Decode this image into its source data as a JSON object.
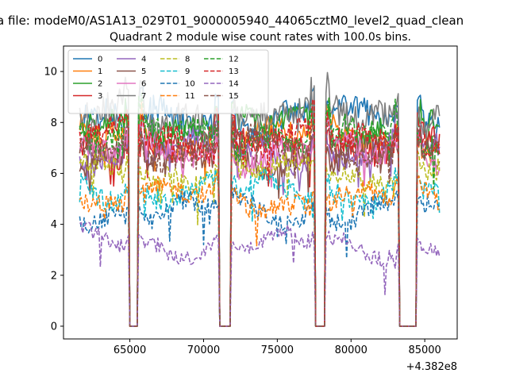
{
  "figure": {
    "suptitle": "a file: modeM0/AS1A13_029T01_9000005940_44065cztM0_level2_quad_clean",
    "title": "Quadrant 2 module wise count rates with 100.0s bins."
  },
  "chart_data": {
    "type": "line",
    "title": "Quadrant 2 module wise count rates with 100.0s bins.",
    "xlabel": "",
    "ylabel": "",
    "x_offset_label": "+4.382e8",
    "xlim": [
      60500,
      87200
    ],
    "ylim": [
      -0.5,
      11.0
    ],
    "x_ticks": [
      65000,
      70000,
      75000,
      80000,
      85000
    ],
    "x_tick_labels": [
      "65000",
      "70000",
      "75000",
      "80000",
      "85000"
    ],
    "y_ticks": [
      0,
      2,
      4,
      6,
      8,
      10
    ],
    "y_tick_labels": [
      "0",
      "2",
      "4",
      "6",
      "8",
      "10"
    ],
    "x_start": 61600,
    "x_end": 86000,
    "bin": 100,
    "gaps": [
      [
        65000,
        65550
      ],
      [
        71100,
        71800
      ],
      [
        77600,
        78200
      ],
      [
        83300,
        84400
      ]
    ],
    "grid": false,
    "legend_position": "top-left",
    "legend_columns": 4,
    "series": [
      {
        "name": "0",
        "mean": 8.1,
        "color": "#1f77b4",
        "dash": "solid"
      },
      {
        "name": "1",
        "mean": 7.4,
        "color": "#ff7f0e",
        "dash": "solid"
      },
      {
        "name": "2",
        "mean": 7.8,
        "color": "#2ca02c",
        "dash": "solid"
      },
      {
        "name": "3",
        "mean": 7.1,
        "color": "#d62728",
        "dash": "solid"
      },
      {
        "name": "4",
        "mean": 6.9,
        "color": "#9467bd",
        "dash": "solid"
      },
      {
        "name": "5",
        "mean": 6.6,
        "color": "#8c564b",
        "dash": "solid"
      },
      {
        "name": "6",
        "mean": 6.8,
        "color": "#e377c2",
        "dash": "solid"
      },
      {
        "name": "7",
        "mean": 8.3,
        "color": "#7f7f7f",
        "dash": "solid"
      },
      {
        "name": "8",
        "mean": 6.0,
        "color": "#bcbd22",
        "dash": "dashed"
      },
      {
        "name": "9",
        "mean": 5.3,
        "color": "#17becf",
        "dash": "dashed"
      },
      {
        "name": "10",
        "mean": 4.5,
        "color": "#1f77b4",
        "dash": "dashed"
      },
      {
        "name": "11",
        "mean": 5.0,
        "color": "#ff7f0e",
        "dash": "dashed"
      },
      {
        "name": "12",
        "mean": 7.5,
        "color": "#2ca02c",
        "dash": "dashed"
      },
      {
        "name": "13",
        "mean": 7.3,
        "color": "#d62728",
        "dash": "dashed"
      },
      {
        "name": "14",
        "mean": 3.2,
        "color": "#9467bd",
        "dash": "dashed"
      },
      {
        "name": "15",
        "mean": 7.0,
        "color": "#8c564b",
        "dash": "dashed"
      }
    ]
  }
}
